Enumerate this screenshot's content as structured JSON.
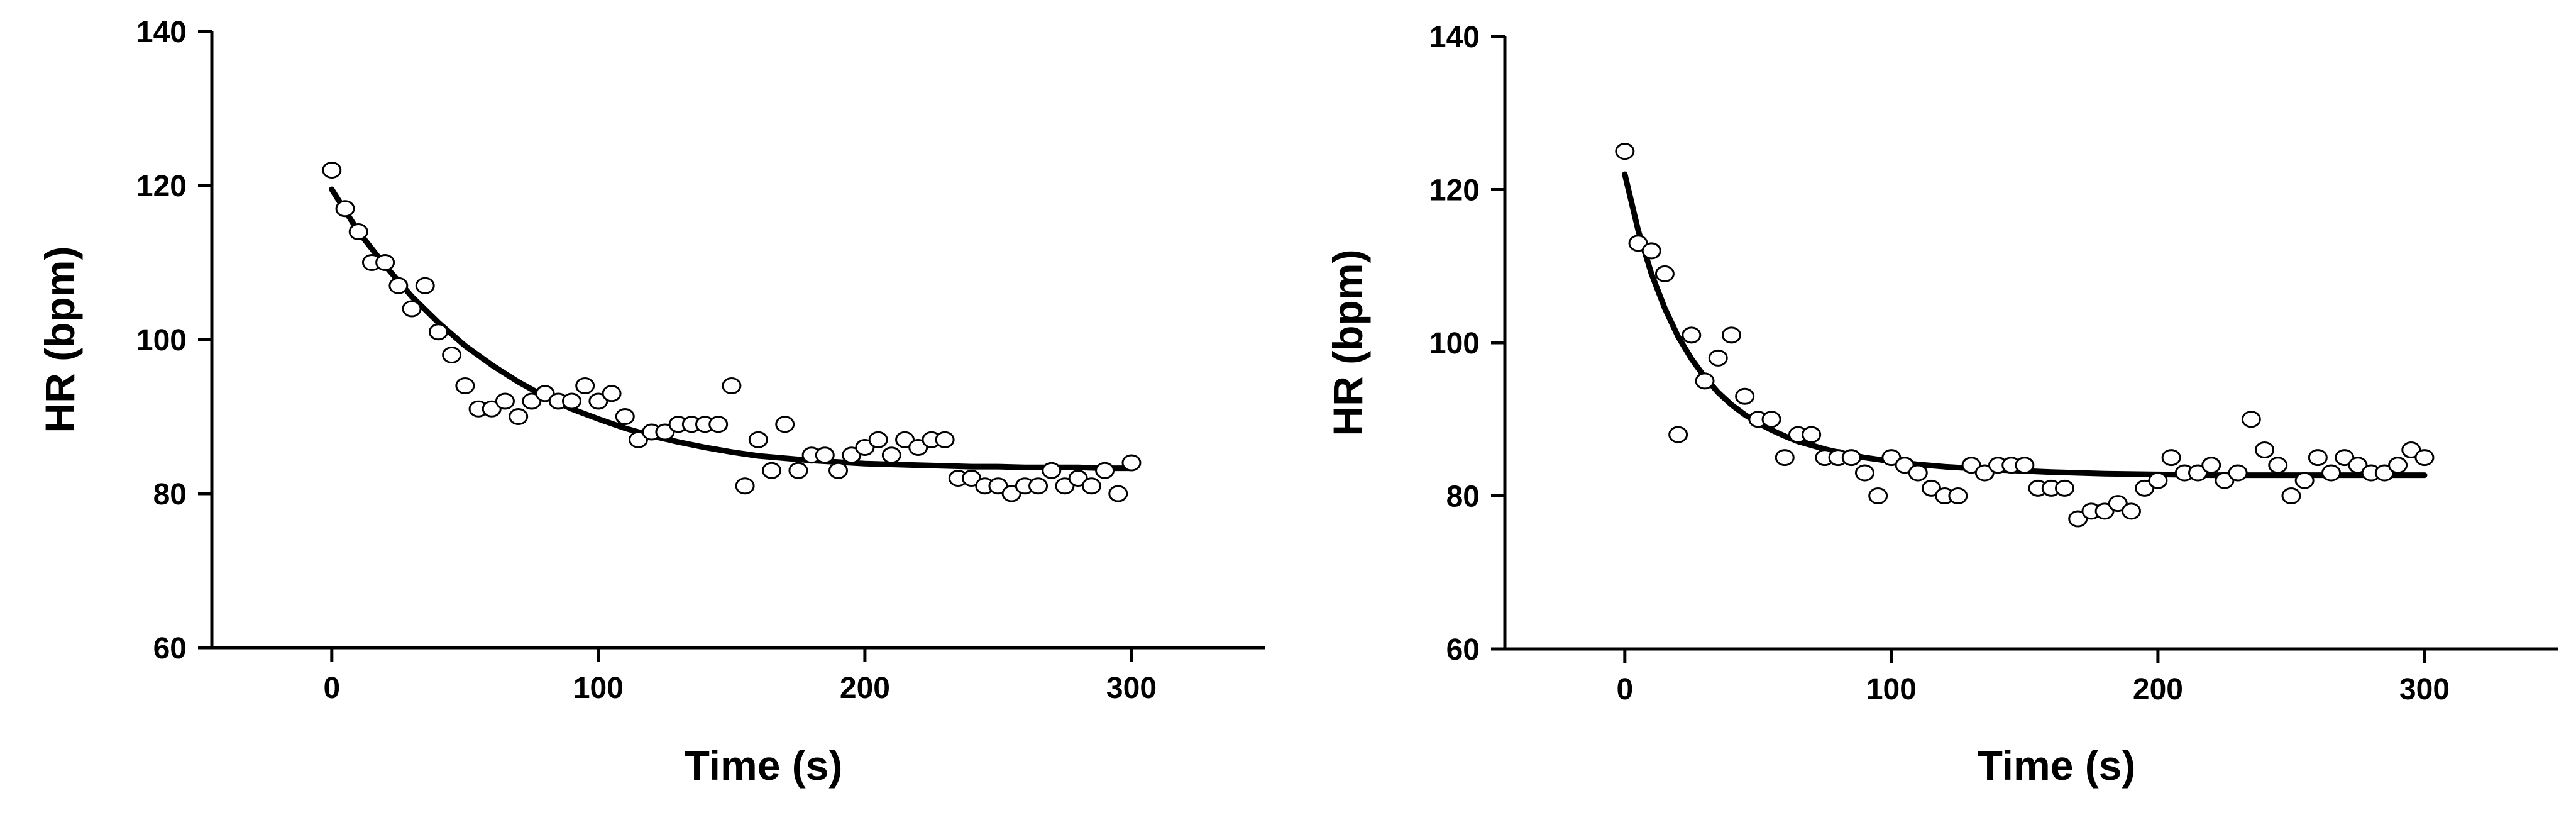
{
  "chart_data": [
    {
      "type": "scatter",
      "xlabel": "Time (s)",
      "ylabel": "HR (bpm)",
      "xlim": [
        -45,
        350
      ],
      "ylim": [
        60,
        140
      ],
      "xticks": [
        0,
        100,
        200,
        300
      ],
      "yticks": [
        60,
        80,
        100,
        120,
        140
      ],
      "grid": false,
      "series": [
        {
          "type": "scatter",
          "marker": "open-circle",
          "x": [
            0,
            5,
            10,
            15,
            20,
            25,
            30,
            35,
            40,
            45,
            50,
            55,
            60,
            65,
            70,
            75,
            80,
            85,
            90,
            95,
            100,
            105,
            110,
            115,
            120,
            125,
            130,
            135,
            140,
            145,
            150,
            155,
            160,
            165,
            170,
            175,
            180,
            185,
            190,
            195,
            200,
            205,
            210,
            215,
            220,
            225,
            230,
            235,
            240,
            245,
            250,
            255,
            260,
            265,
            270,
            275,
            280,
            285,
            290,
            295,
            300
          ],
          "y": [
            122,
            117,
            114,
            110,
            110,
            107,
            104,
            107,
            101,
            98,
            94,
            91,
            91,
            92,
            90,
            92,
            93,
            92,
            92,
            94,
            92,
            93,
            90,
            87,
            88,
            88,
            89,
            89,
            89,
            89,
            94,
            81,
            87,
            83,
            89,
            83,
            85,
            85,
            83,
            85,
            86,
            87,
            85,
            87,
            86,
            87,
            87,
            82,
            82,
            81,
            81,
            80,
            81,
            81,
            83,
            81,
            82,
            81,
            83,
            80,
            84
          ]
        },
        {
          "type": "line",
          "x": [
            0,
            10,
            20,
            30,
            40,
            50,
            60,
            70,
            80,
            90,
            100,
            110,
            120,
            130,
            140,
            150,
            160,
            170,
            180,
            190,
            200,
            210,
            220,
            230,
            240,
            250,
            260,
            270,
            280,
            290,
            300
          ],
          "y": [
            119.5,
            114.0,
            109.6,
            105.6,
            102.2,
            99.2,
            96.7,
            94.5,
            92.6,
            91.0,
            89.7,
            88.5,
            87.5,
            86.7,
            86.0,
            85.4,
            84.9,
            84.6,
            84.3,
            84.1,
            83.9,
            83.8,
            83.7,
            83.6,
            83.5,
            83.5,
            83.4,
            83.4,
            83.4,
            83.3,
            83.3
          ]
        }
      ]
    },
    {
      "type": "scatter",
      "xlabel": "Time (s)",
      "ylabel": "HR (bpm)",
      "xlim": [
        -45,
        350
      ],
      "ylim": [
        60,
        140
      ],
      "xticks": [
        0,
        100,
        200,
        300
      ],
      "yticks": [
        60,
        80,
        100,
        120,
        140
      ],
      "grid": false,
      "series": [
        {
          "type": "scatter",
          "marker": "open-circle",
          "x": [
            0,
            5,
            10,
            15,
            20,
            25,
            30,
            35,
            40,
            45,
            50,
            55,
            60,
            65,
            70,
            75,
            80,
            85,
            90,
            95,
            100,
            105,
            110,
            115,
            120,
            125,
            130,
            135,
            140,
            145,
            150,
            155,
            160,
            165,
            170,
            175,
            180,
            185,
            190,
            195,
            200,
            205,
            210,
            215,
            220,
            225,
            230,
            235,
            240,
            245,
            250,
            255,
            260,
            265,
            270,
            275,
            280,
            285,
            290,
            295,
            300
          ],
          "y": [
            125,
            113,
            112,
            109,
            88,
            101,
            95,
            98,
            101,
            93,
            90,
            90,
            85,
            88,
            88,
            85,
            85,
            85,
            83,
            80,
            85,
            84,
            83,
            81,
            80,
            80,
            84,
            83,
            84,
            84,
            84,
            81,
            81,
            81,
            77,
            78,
            78,
            79,
            78,
            81,
            82,
            85,
            83,
            83,
            84,
            82,
            83,
            90,
            86,
            84,
            80,
            82,
            85,
            83,
            85,
            84,
            83,
            83,
            84,
            86,
            85
          ]
        },
        {
          "type": "line",
          "x": [
            0,
            5,
            10,
            15,
            20,
            25,
            30,
            35,
            40,
            45,
            50,
            55,
            60,
            65,
            70,
            75,
            80,
            90,
            100,
            110,
            120,
            130,
            140,
            160,
            180,
            200,
            220,
            240,
            260,
            280,
            300
          ],
          "y": [
            122.0,
            114.7,
            109.0,
            104.5,
            100.8,
            97.9,
            95.5,
            93.5,
            91.9,
            90.6,
            89.5,
            88.6,
            87.8,
            87.1,
            86.6,
            86.1,
            85.7,
            85.0,
            84.5,
            84.1,
            83.8,
            83.6,
            83.4,
            83.1,
            82.9,
            82.8,
            82.7,
            82.7,
            82.7,
            82.7,
            82.7
          ]
        }
      ]
    }
  ]
}
